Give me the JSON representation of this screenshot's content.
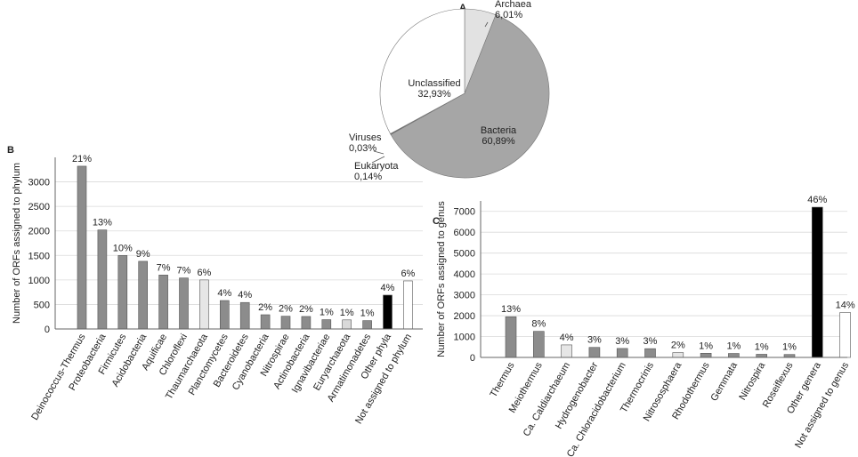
{
  "chart_data": [
    {
      "type": "pie",
      "panel": "A",
      "categories": [
        "Archaea",
        "Bacteria",
        "Eukaryota",
        "Viruses",
        "Unclassified"
      ],
      "values": [
        6.01,
        60.89,
        0.14,
        0.03,
        32.93
      ],
      "value_labels": [
        "6,01%",
        "60,89%",
        "0,14%",
        "0,03%",
        "32,93%"
      ],
      "colors": [
        "#e2e2e2",
        "#a6a6a6",
        "#111111",
        "#555555",
        "#ffffff"
      ]
    },
    {
      "type": "bar",
      "panel": "B",
      "ylabel": "Number of ORFs assigned to phylum",
      "categories": [
        "Deinococcus-Thermus",
        "Proteobacteria",
        "Firmicutes",
        "Acidobacteria",
        "Aquificae",
        "Chloroflexi",
        "Thaumarchaeota",
        "Planctomycetes",
        "Bacteroidetes",
        "Cyanobacteria",
        "Nitrospirae",
        "Actinobacteria",
        "Ignavibacteriae",
        "Euryarchaeota",
        "Armatimonadetes",
        "Other phyla",
        "Not assigned to phylum"
      ],
      "values": [
        3320,
        2020,
        1500,
        1380,
        1100,
        1040,
        1000,
        580,
        540,
        290,
        260,
        255,
        190,
        185,
        170,
        690,
        980
      ],
      "percent_labels": [
        "21%",
        "13%",
        "10%",
        "9%",
        "7%",
        "7%",
        "6%",
        "4%",
        "4%",
        "2%",
        "2%",
        "2%",
        "1%",
        "1%",
        "1%",
        "4%",
        "6%"
      ],
      "colors": [
        "#8c8c8c",
        "#8c8c8c",
        "#8c8c8c",
        "#8c8c8c",
        "#8c8c8c",
        "#8c8c8c",
        "#e6e6e6",
        "#8c8c8c",
        "#8c8c8c",
        "#8c8c8c",
        "#8c8c8c",
        "#8c8c8c",
        "#8c8c8c",
        "#d9d9d9",
        "#8c8c8c",
        "#000000",
        "#ffffff"
      ],
      "ylim": [
        0,
        3500
      ],
      "yticks": [
        0,
        500,
        1000,
        1500,
        2000,
        2500,
        3000
      ],
      "grid": true
    },
    {
      "type": "bar",
      "panel": "C",
      "ylabel": "Number of ORFs assigned to genus",
      "categories": [
        "Thermus",
        "Meiothermus",
        "Ca. Caldiarchaeum",
        "Hydrogenobacter",
        "Ca. Chloracidobacterium",
        "Thermocrinis",
        "Nitrososphaera",
        "Rhodothermus",
        "Gemmata",
        "Nitrospira",
        "Roseiflexus",
        "Other genera",
        "Not assigned to genus"
      ],
      "values": [
        1950,
        1250,
        600,
        480,
        430,
        420,
        230,
        200,
        190,
        150,
        140,
        7200,
        2150
      ],
      "percent_labels": [
        "13%",
        "8%",
        "4%",
        "3%",
        "3%",
        "3%",
        "2%",
        "1%",
        "1%",
        "1%",
        "1%",
        "46%",
        "14%"
      ],
      "colors": [
        "#8c8c8c",
        "#8c8c8c",
        "#e6e6e6",
        "#8c8c8c",
        "#8c8c8c",
        "#8c8c8c",
        "#e6e6e6",
        "#8c8c8c",
        "#8c8c8c",
        "#8c8c8c",
        "#8c8c8c",
        "#000000",
        "#ffffff"
      ],
      "ylim": [
        0,
        7500
      ],
      "yticks": [
        0,
        1000,
        2000,
        3000,
        4000,
        5000,
        6000,
        7000
      ],
      "grid": true
    }
  ]
}
